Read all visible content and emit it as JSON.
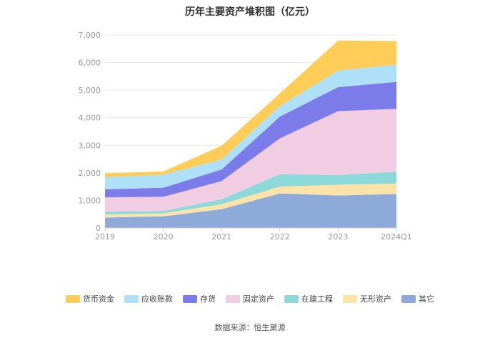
{
  "chart_data": {
    "type": "area",
    "stacked": true,
    "title": "历年主要资产堆积图（亿元）",
    "categories": [
      "2019",
      "2020",
      "2021",
      "2022",
      "2023",
      "2024Q1"
    ],
    "y_ticks": [
      "0",
      "1,000",
      "2,000",
      "3,000",
      "4,000",
      "5,000",
      "6,000",
      "7,000"
    ],
    "ylim": [
      0,
      7000
    ],
    "series": [
      {
        "name": "其它",
        "color": "#8eaad9",
        "values": [
          380,
          420,
          680,
          1250,
          1180,
          1230
        ]
      },
      {
        "name": "无形资产",
        "color": "#fde3a7",
        "values": [
          110,
          110,
          180,
          250,
          390,
          380
        ]
      },
      {
        "name": "在建工程",
        "color": "#8dd9d9",
        "values": [
          100,
          80,
          180,
          450,
          350,
          430
        ]
      },
      {
        "name": "固定资产",
        "color": "#f0cde3",
        "values": [
          520,
          520,
          660,
          1300,
          2320,
          2280
        ]
      },
      {
        "name": "存货",
        "color": "#7b7bea",
        "values": [
          290,
          330,
          420,
          790,
          870,
          980
        ]
      },
      {
        "name": "应收账款",
        "color": "#aee0f7",
        "values": [
          440,
          470,
          360,
          380,
          600,
          620
        ]
      },
      {
        "name": "货币资金",
        "color": "#fecd57",
        "values": [
          140,
          120,
          500,
          460,
          1090,
          860
        ]
      }
    ],
    "legend_order": [
      "货币资金",
      "应收账款",
      "存货",
      "固定资产",
      "在建工程",
      "无形资产",
      "其它"
    ]
  },
  "source_note": "数据来源：恒生聚源"
}
